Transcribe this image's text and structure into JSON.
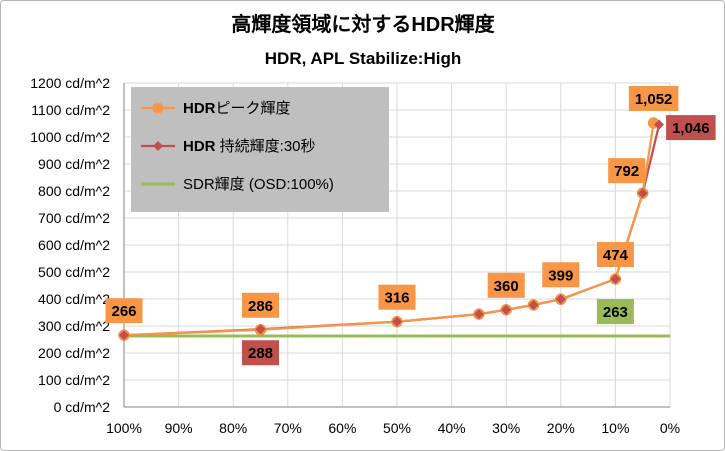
{
  "chart_data": {
    "type": "line",
    "title": "高輝度領域に対するHDR輝度",
    "subtitle": "HDR, APL Stabilize:High",
    "xlabel": "",
    "ylabel": "",
    "x_axis": {
      "min": 0,
      "max": 100,
      "reversed": true,
      "ticks": [
        100,
        90,
        80,
        70,
        60,
        50,
        40,
        30,
        20,
        10,
        0
      ],
      "tick_labels": [
        "100%",
        "90%",
        "80%",
        "70%",
        "60%",
        "50%",
        "40%",
        "30%",
        "20%",
        "10%",
        "0%"
      ]
    },
    "y_axis": {
      "min": 0,
      "max": 1200,
      "ticks": [
        0,
        100,
        200,
        300,
        400,
        500,
        600,
        700,
        800,
        900,
        1000,
        1100,
        1200
      ],
      "tick_labels": [
        "0 cd/m^2",
        "100 cd/m^2",
        "200 cd/m^2",
        "300 cd/m^2",
        "400 cd/m^2",
        "500 cd/m^2",
        "600 cd/m^2",
        "700 cd/m^2",
        "800 cd/m^2",
        "900 cd/m^2",
        "1000 cd/m^2",
        "1100 cd/m^2",
        "1200 cd/m^2"
      ]
    },
    "grid": {
      "x": true,
      "y": true
    },
    "legend": {
      "position": "top-left"
    },
    "series": [
      {
        "name": "HDRピーク輝度",
        "name_bold": "HDR",
        "name_rest": "ピーク輝度",
        "color": "#f79646",
        "marker": "circle",
        "points": [
          {
            "x": 100,
            "y": 266
          },
          {
            "x": 75,
            "y": 286
          },
          {
            "x": 50,
            "y": 316
          },
          {
            "x": 35,
            "y": 344
          },
          {
            "x": 30,
            "y": 360
          },
          {
            "x": 25,
            "y": 378
          },
          {
            "x": 20,
            "y": 399
          },
          {
            "x": 10,
            "y": 474
          },
          {
            "x": 5,
            "y": 792
          },
          {
            "x": 3,
            "y": 1052
          }
        ]
      },
      {
        "name": "HDR 持続輝度:30秒",
        "name_bold": "HDR",
        "name_rest": " 持続輝度:30秒",
        "color": "#c0504d",
        "marker": "diamond",
        "points": [
          {
            "x": 100,
            "y": 266
          },
          {
            "x": 75,
            "y": 288
          },
          {
            "x": 50,
            "y": 316
          },
          {
            "x": 35,
            "y": 344
          },
          {
            "x": 30,
            "y": 360
          },
          {
            "x": 25,
            "y": 378
          },
          {
            "x": 20,
            "y": 399
          },
          {
            "x": 10,
            "y": 474
          },
          {
            "x": 5,
            "y": 792
          },
          {
            "x": 2,
            "y": 1046
          }
        ]
      },
      {
        "name": "SDR輝度 (OSD:100%)",
        "color": "#9bbb59",
        "marker": "none",
        "points": [
          {
            "x": 100,
            "y": 263
          },
          {
            "x": 0,
            "y": 263
          }
        ]
      }
    ],
    "data_labels": [
      {
        "text": "266",
        "x": 100,
        "y": 266,
        "box": "#f79646",
        "place": "above"
      },
      {
        "text": "286",
        "x": 75,
        "y": 286,
        "box": "#f79646",
        "place": "above"
      },
      {
        "text": "316",
        "x": 50,
        "y": 316,
        "box": "#f79646",
        "place": "above"
      },
      {
        "text": "360",
        "x": 30,
        "y": 360,
        "box": "#f79646",
        "place": "above"
      },
      {
        "text": "399",
        "x": 20,
        "y": 399,
        "box": "#f79646",
        "place": "above"
      },
      {
        "text": "474",
        "x": 10,
        "y": 474,
        "box": "#f79646",
        "place": "above"
      },
      {
        "text": "792",
        "x": 5,
        "y": 792,
        "box": "#f79646",
        "place": "left-above"
      },
      {
        "text": "1,052",
        "x": 3,
        "y": 1052,
        "box": "#f79646",
        "place": "above"
      },
      {
        "text": "288",
        "x": 75,
        "y": 288,
        "box": "#c0504d",
        "place": "below"
      },
      {
        "text": "1,046",
        "x": 2,
        "y": 1046,
        "box": "#c0504d",
        "place": "right"
      },
      {
        "text": "263",
        "x": 10,
        "y": 263,
        "box": "#9bbb59",
        "place": "above"
      }
    ]
  }
}
